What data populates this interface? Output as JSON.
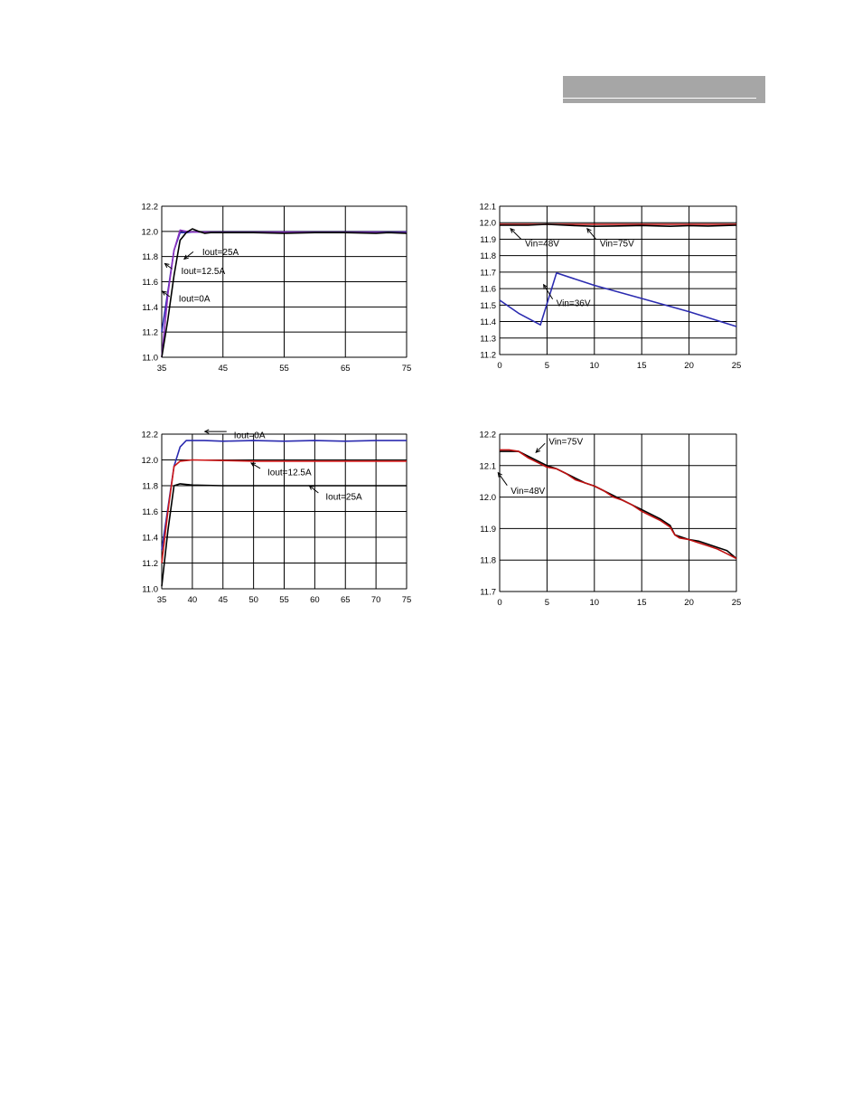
{
  "page": {
    "header_color": "#a6a6a6"
  },
  "chart_data": [
    {
      "type": "line",
      "xlim": [
        35,
        75
      ],
      "ylim": [
        11.0,
        12.2
      ],
      "x_ticks": [
        35,
        45,
        55,
        65,
        75
      ],
      "y_ticks": [
        11.0,
        11.2,
        11.4,
        11.6,
        11.8,
        12.0,
        12.2
      ],
      "grid": true,
      "series": [
        {
          "name": "Iout=0A",
          "color": "#2b2bb0",
          "x": [
            35,
            37,
            38,
            39,
            40,
            45,
            55,
            65,
            70,
            75
          ],
          "y": [
            11.2,
            11.85,
            11.99,
            11.99,
            11.995,
            11.995,
            11.995,
            11.995,
            11.995,
            11.995
          ]
        },
        {
          "name": "Iout=12.5A",
          "color": "#8b2fc0",
          "x": [
            35,
            36,
            37,
            38,
            39,
            40,
            45,
            55,
            65,
            75
          ],
          "y": [
            11.0,
            11.5,
            11.85,
            12.01,
            12.0,
            11.995,
            11.993,
            11.993,
            11.993,
            11.99
          ]
        },
        {
          "name": "Iout=25A",
          "color": "#000000",
          "x": [
            35,
            36,
            37,
            38,
            39,
            40,
            41,
            42,
            43,
            45,
            50,
            55,
            60,
            65,
            70,
            72,
            75
          ],
          "y": [
            11.0,
            11.3,
            11.65,
            11.93,
            11.99,
            12.02,
            12.0,
            11.985,
            11.99,
            11.99,
            11.99,
            11.985,
            11.99,
            11.99,
            11.985,
            11.99,
            11.985
          ]
        }
      ],
      "annotations": [
        {
          "text": "Iout=25A",
          "x": 40,
          "y": 11.96
        },
        {
          "text": "Iout=12.5A",
          "x": 36.7,
          "y": 11.73
        },
        {
          "text": "Iout=0A",
          "x": 36.0,
          "y": 11.51
        }
      ]
    },
    {
      "type": "line",
      "xlim": [
        0,
        25
      ],
      "ylim": [
        11.2,
        12.1
      ],
      "x_ticks": [
        0,
        5,
        10,
        15,
        20,
        25
      ],
      "y_ticks": [
        11.2,
        11.3,
        11.4,
        11.5,
        11.6,
        11.7,
        11.8,
        11.9,
        12.0,
        12.1
      ],
      "grid": true,
      "series": [
        {
          "name": "Vin=36V",
          "color": "#2b2bb0",
          "x": [
            0,
            2,
            4.3,
            6,
            10,
            15,
            20,
            25
          ],
          "y": [
            11.53,
            11.45,
            11.38,
            11.695,
            11.62,
            11.54,
            11.46,
            11.37
          ]
        },
        {
          "name": "Vin=75V",
          "color": "#c01010",
          "x": [
            0,
            5,
            10,
            15,
            20,
            25
          ],
          "y": [
            11.99,
            11.99,
            11.99,
            11.99,
            11.99,
            11.99
          ]
        },
        {
          "name": "Vin=48V",
          "color": "#000000",
          "x": [
            0,
            3,
            5,
            8,
            10,
            12,
            15,
            18,
            20,
            22,
            25
          ],
          "y": [
            11.985,
            11.985,
            11.99,
            11.982,
            11.978,
            11.98,
            11.983,
            11.978,
            11.982,
            11.98,
            11.985
          ]
        }
      ],
      "annotations": [
        {
          "text": "Vin=48V",
          "x": 2.2,
          "y": 11.975
        },
        {
          "text": "Vin=75V",
          "x": 10.1,
          "y": 11.975
        },
        {
          "text": "Vin=36V",
          "x": 5.5,
          "y": 11.58
        }
      ]
    },
    {
      "type": "line",
      "xlim": [
        35,
        75
      ],
      "ylim": [
        11.0,
        12.2
      ],
      "x_ticks": [
        35,
        40,
        45,
        50,
        55,
        60,
        65,
        70,
        75
      ],
      "y_ticks": [
        11.0,
        11.2,
        11.4,
        11.6,
        11.8,
        12.0,
        12.2
      ],
      "grid": true,
      "series": [
        {
          "name": "Iout=0A",
          "color": "#2b2bb0",
          "x": [
            35,
            37,
            38,
            39,
            42,
            45,
            50,
            55,
            60,
            65,
            70,
            75
          ],
          "y": [
            11.3,
            11.95,
            12.1,
            12.15,
            12.15,
            12.145,
            12.15,
            12.145,
            12.15,
            12.145,
            12.15,
            12.15
          ]
        },
        {
          "name": "Iout=12.5A",
          "color": "#d01818",
          "x": [
            35,
            36,
            37,
            38,
            40,
            45,
            50,
            55,
            60,
            65,
            70,
            75
          ],
          "y": [
            11.2,
            11.6,
            11.95,
            11.99,
            12.0,
            11.995,
            11.99,
            11.99,
            11.99,
            11.99,
            11.99,
            11.99
          ]
        },
        {
          "name": "Iout=25A",
          "color": "#000000",
          "x": [
            35,
            36,
            37,
            38,
            40,
            45,
            50,
            55,
            60,
            65,
            70,
            75
          ],
          "y": [
            11.02,
            11.45,
            11.8,
            11.815,
            11.805,
            11.8,
            11.8,
            11.8,
            11.8,
            11.8,
            11.8,
            11.8
          ]
        }
      ],
      "annotations": [
        {
          "text": "Iout=0A",
          "x": 45,
          "y": 12.15
        },
        {
          "text": "Iout=12.5A",
          "x": 50.5,
          "y": 11.99
        },
        {
          "text": "Iout=25A",
          "x": 60,
          "y": 11.8
        }
      ]
    },
    {
      "type": "line",
      "xlim": [
        0,
        25
      ],
      "ylim": [
        11.7,
        12.2
      ],
      "x_ticks": [
        0,
        5,
        10,
        15,
        20,
        25
      ],
      "y_ticks": [
        11.7,
        11.8,
        11.9,
        12.0,
        12.1,
        12.2
      ],
      "grid": true,
      "series": [
        {
          "name": "Vin=75V",
          "color": "#000000",
          "x": [
            0,
            1,
            2,
            3,
            4,
            5,
            6,
            7,
            8,
            9,
            10,
            11,
            12,
            13,
            14,
            15,
            16,
            17,
            18,
            18.5,
            19,
            20,
            21,
            22,
            23,
            24,
            25
          ],
          "y": [
            12.145,
            12.145,
            12.145,
            12.13,
            12.115,
            12.1,
            12.09,
            12.075,
            12.06,
            12.045,
            12.035,
            12.02,
            12.005,
            11.99,
            11.975,
            11.96,
            11.945,
            11.93,
            11.91,
            11.88,
            11.875,
            11.865,
            11.86,
            11.85,
            11.84,
            11.83,
            11.805
          ]
        },
        {
          "name": "Vin=48V",
          "color": "#c01010",
          "x": [
            0,
            1,
            2,
            3,
            4,
            5,
            6,
            7,
            8,
            9,
            10,
            11,
            12,
            13,
            14,
            15,
            16,
            17,
            18,
            18.5,
            19,
            20,
            21,
            22,
            23,
            24,
            25
          ],
          "y": [
            12.15,
            12.15,
            12.145,
            12.125,
            12.11,
            12.095,
            12.09,
            12.075,
            12.055,
            12.045,
            12.035,
            12.02,
            12.0,
            11.99,
            11.975,
            11.955,
            11.94,
            11.925,
            11.905,
            11.88,
            11.87,
            11.865,
            11.855,
            11.845,
            11.835,
            11.82,
            11.805
          ]
        }
      ],
      "annotations": [
        {
          "text": "Vin=75V",
          "x": 4.6,
          "y": 12.165
        },
        {
          "text": "Vin=48V",
          "x": 0.6,
          "y": 12.06
        }
      ]
    }
  ]
}
